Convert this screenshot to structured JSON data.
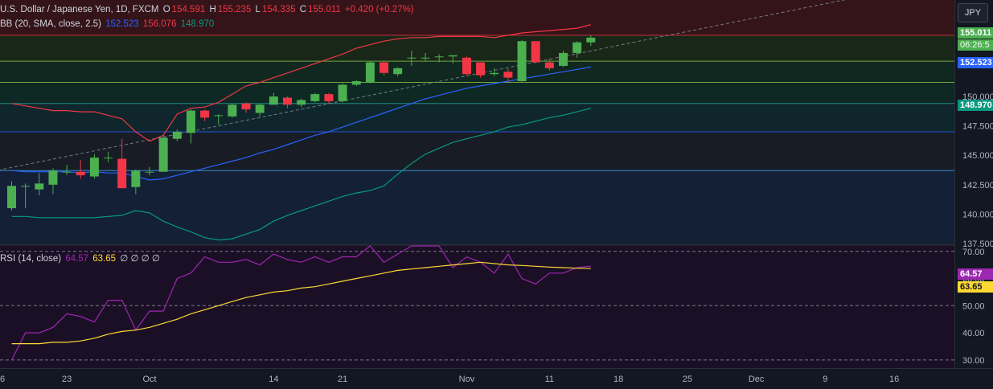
{
  "header": {
    "symbol": "U.S. Dollar / Japanese Yen, 1D, FXCM",
    "open_label": "O",
    "open": "154.591",
    "high_label": "H",
    "high": "155.235",
    "low_label": "L",
    "low": "154.335",
    "close_label": "C",
    "close": "155.011",
    "change": "+0.420 (+0.27%)",
    "bb_label": "BB (20, SMA, close, 2.5)",
    "bb_mid": "152.523",
    "bb_upper": "156.076",
    "bb_lower": "148.970",
    "rsi_label": "RSI (14, close)",
    "rsi_value": "64.57",
    "rsi_ma": "63.65",
    "rsi_extra": "∅ ∅ ∅ ∅"
  },
  "currency": "JPY",
  "price_tags": {
    "last": "155.011",
    "countdown": "06:26:5",
    "mid": "152.523",
    "lower": "148.970",
    "rsi": "64.57",
    "rsi_ma": "63.65"
  },
  "colors": {
    "up": "#4caf50",
    "down": "#f23645",
    "bb_mid": "#2962ff",
    "bb_upper": "#f23645",
    "bb_lower": "#089981",
    "rsi": "#9c27b0",
    "rsi_ma": "#fdd835"
  },
  "chart_data": [
    {
      "type": "candlestick",
      "title": "U.S. Dollar / Japanese Yen, 1D, FXCM",
      "ylim": [
        137.5,
        158.2
      ],
      "y_ticks": [
        137.5,
        140.0,
        142.5,
        145.0,
        147.5,
        150.0
      ],
      "x_tick_labels": [
        "6",
        "23",
        "Oct",
        "14",
        "21",
        "Nov",
        "11",
        "18",
        "25",
        "Dec",
        "9",
        "16"
      ],
      "x_tick_index": [
        -1,
        4,
        10,
        19,
        24,
        33,
        39,
        44,
        49,
        54,
        59,
        64
      ],
      "horizontal_levels": [
        155.2,
        153.0,
        151.2,
        149.4,
        147.0,
        143.7
      ],
      "candles": [
        {
          "o": 140.5,
          "h": 142.8,
          "l": 140.3,
          "c": 142.4
        },
        {
          "o": 142.4,
          "h": 142.6,
          "l": 140.5,
          "c": 142.4
        },
        {
          "o": 142.1,
          "h": 143.5,
          "l": 141.6,
          "c": 142.6
        },
        {
          "o": 142.5,
          "h": 143.9,
          "l": 141.7,
          "c": 143.7
        },
        {
          "o": 143.6,
          "h": 144.2,
          "l": 143.3,
          "c": 143.6
        },
        {
          "o": 143.6,
          "h": 144.6,
          "l": 143.0,
          "c": 143.3
        },
        {
          "o": 143.2,
          "h": 145.1,
          "l": 143.0,
          "c": 144.8
        },
        {
          "o": 144.8,
          "h": 145.3,
          "l": 144.4,
          "c": 144.8
        },
        {
          "o": 144.7,
          "h": 146.4,
          "l": 142.2,
          "c": 142.2
        },
        {
          "o": 142.3,
          "h": 143.8,
          "l": 141.7,
          "c": 143.7
        },
        {
          "o": 143.6,
          "h": 144.0,
          "l": 143.3,
          "c": 143.6
        },
        {
          "o": 143.6,
          "h": 146.7,
          "l": 143.6,
          "c": 146.5
        },
        {
          "o": 146.4,
          "h": 147.2,
          "l": 146.2,
          "c": 147.0
        },
        {
          "o": 146.9,
          "h": 148.9,
          "l": 146.0,
          "c": 148.8
        },
        {
          "o": 148.8,
          "h": 148.9,
          "l": 147.9,
          "c": 148.2
        },
        {
          "o": 148.4,
          "h": 148.5,
          "l": 147.6,
          "c": 148.4
        },
        {
          "o": 148.3,
          "h": 149.4,
          "l": 148.2,
          "c": 149.3
        },
        {
          "o": 149.4,
          "h": 149.5,
          "l": 148.6,
          "c": 148.9
        },
        {
          "o": 148.6,
          "h": 149.4,
          "l": 148.3,
          "c": 149.3
        },
        {
          "o": 149.3,
          "h": 150.3,
          "l": 149.3,
          "c": 150.0
        },
        {
          "o": 149.9,
          "h": 150.0,
          "l": 149.0,
          "c": 149.3
        },
        {
          "o": 149.3,
          "h": 149.8,
          "l": 149.1,
          "c": 149.7
        },
        {
          "o": 149.6,
          "h": 150.3,
          "l": 149.5,
          "c": 150.2
        },
        {
          "o": 150.2,
          "h": 150.3,
          "l": 149.4,
          "c": 149.6
        },
        {
          "o": 149.6,
          "h": 151.1,
          "l": 149.5,
          "c": 151.0
        },
        {
          "o": 151.0,
          "h": 151.4,
          "l": 150.9,
          "c": 151.3
        },
        {
          "o": 151.2,
          "h": 153.0,
          "l": 151.1,
          "c": 152.9
        },
        {
          "o": 152.9,
          "h": 153.0,
          "l": 151.8,
          "c": 152.0
        },
        {
          "o": 151.9,
          "h": 152.5,
          "l": 151.7,
          "c": 152.4
        },
        {
          "o": 153.3,
          "h": 153.9,
          "l": 152.6,
          "c": 153.3
        },
        {
          "o": 153.3,
          "h": 153.7,
          "l": 153.0,
          "c": 153.3
        },
        {
          "o": 153.4,
          "h": 153.6,
          "l": 152.9,
          "c": 153.4
        },
        {
          "o": 153.4,
          "h": 153.5,
          "l": 152.8,
          "c": 153.5
        },
        {
          "o": 153.3,
          "h": 153.4,
          "l": 151.8,
          "c": 151.9
        },
        {
          "o": 152.9,
          "h": 152.9,
          "l": 151.6,
          "c": 151.8
        },
        {
          "o": 151.9,
          "h": 152.4,
          "l": 151.7,
          "c": 152.0
        },
        {
          "o": 152.1,
          "h": 152.4,
          "l": 151.2,
          "c": 151.6
        },
        {
          "o": 151.3,
          "h": 154.8,
          "l": 151.2,
          "c": 154.7
        },
        {
          "o": 154.7,
          "h": 154.7,
          "l": 152.8,
          "c": 152.9
        },
        {
          "o": 152.9,
          "h": 153.2,
          "l": 152.2,
          "c": 152.4
        },
        {
          "o": 152.6,
          "h": 153.9,
          "l": 152.5,
          "c": 153.7
        },
        {
          "o": 153.7,
          "h": 154.7,
          "l": 153.3,
          "c": 154.6
        },
        {
          "o": 154.6,
          "h": 155.2,
          "l": 154.3,
          "c": 155.0
        }
      ],
      "bb_upper": [
        149.4,
        149.2,
        149.0,
        148.8,
        148.8,
        148.7,
        148.7,
        148.4,
        148.1,
        147.0,
        146.2,
        146.7,
        148.5,
        149.0,
        149.1,
        149.5,
        150.2,
        150.9,
        151.2,
        151.6,
        152.0,
        152.4,
        152.8,
        153.2,
        153.6,
        154.1,
        154.4,
        154.7,
        154.9,
        155.0,
        155.0,
        155.1,
        155.1,
        155.1,
        155.1,
        155.0,
        155.2,
        155.4,
        155.5,
        155.6,
        155.7,
        155.8,
        156.1
      ],
      "bb_mid": [
        143.7,
        143.6,
        143.6,
        143.6,
        143.6,
        143.5,
        143.6,
        143.5,
        143.5,
        143.2,
        142.9,
        143.0,
        143.3,
        143.6,
        143.9,
        144.2,
        144.5,
        144.8,
        145.2,
        145.5,
        145.9,
        146.3,
        146.7,
        147.0,
        147.4,
        147.8,
        148.2,
        148.6,
        149.0,
        149.4,
        149.8,
        150.1,
        150.4,
        150.7,
        150.9,
        151.1,
        151.3,
        151.5,
        151.7,
        151.9,
        152.1,
        152.3,
        152.5
      ],
      "bb_lower": [
        139.8,
        139.8,
        139.7,
        139.7,
        139.7,
        139.7,
        139.7,
        139.8,
        139.9,
        140.3,
        140.1,
        139.4,
        138.9,
        138.5,
        138.0,
        137.8,
        137.9,
        138.3,
        138.7,
        139.4,
        139.9,
        140.3,
        140.7,
        141.1,
        141.5,
        141.8,
        142.0,
        142.4,
        143.4,
        144.3,
        145.1,
        145.6,
        146.1,
        146.4,
        146.7,
        147.0,
        147.4,
        147.6,
        147.9,
        148.2,
        148.4,
        148.7,
        149.0
      ]
    },
    {
      "type": "line",
      "title": "RSI (14, close)",
      "ylim": [
        27,
        72
      ],
      "y_ticks": [
        30,
        40,
        50,
        60,
        70
      ],
      "dashed_levels": [
        70,
        50,
        30
      ],
      "series": [
        {
          "name": "RSI",
          "values": [
            30,
            40,
            40,
            42,
            47,
            46,
            44,
            52,
            52,
            41,
            48,
            48,
            60,
            62,
            68,
            66,
            66,
            67,
            65,
            69,
            67,
            66,
            68,
            66,
            68,
            68,
            72,
            66,
            69,
            72,
            72,
            72,
            64,
            68,
            66,
            62,
            69,
            60,
            58,
            62,
            62,
            64,
            64.57
          ]
        },
        {
          "name": "MA",
          "values": [
            36,
            36,
            36,
            36.5,
            36.5,
            37,
            38,
            39.5,
            40.5,
            41,
            42,
            43.5,
            45,
            47,
            48.5,
            50,
            51.5,
            53,
            54,
            55,
            55.5,
            56.5,
            57,
            58,
            59,
            60,
            61,
            62,
            63,
            63.5,
            64,
            64.5,
            65,
            65.5,
            66,
            65.5,
            65,
            64.8,
            64.5,
            64.2,
            64,
            63.8,
            63.65
          ]
        }
      ]
    }
  ]
}
